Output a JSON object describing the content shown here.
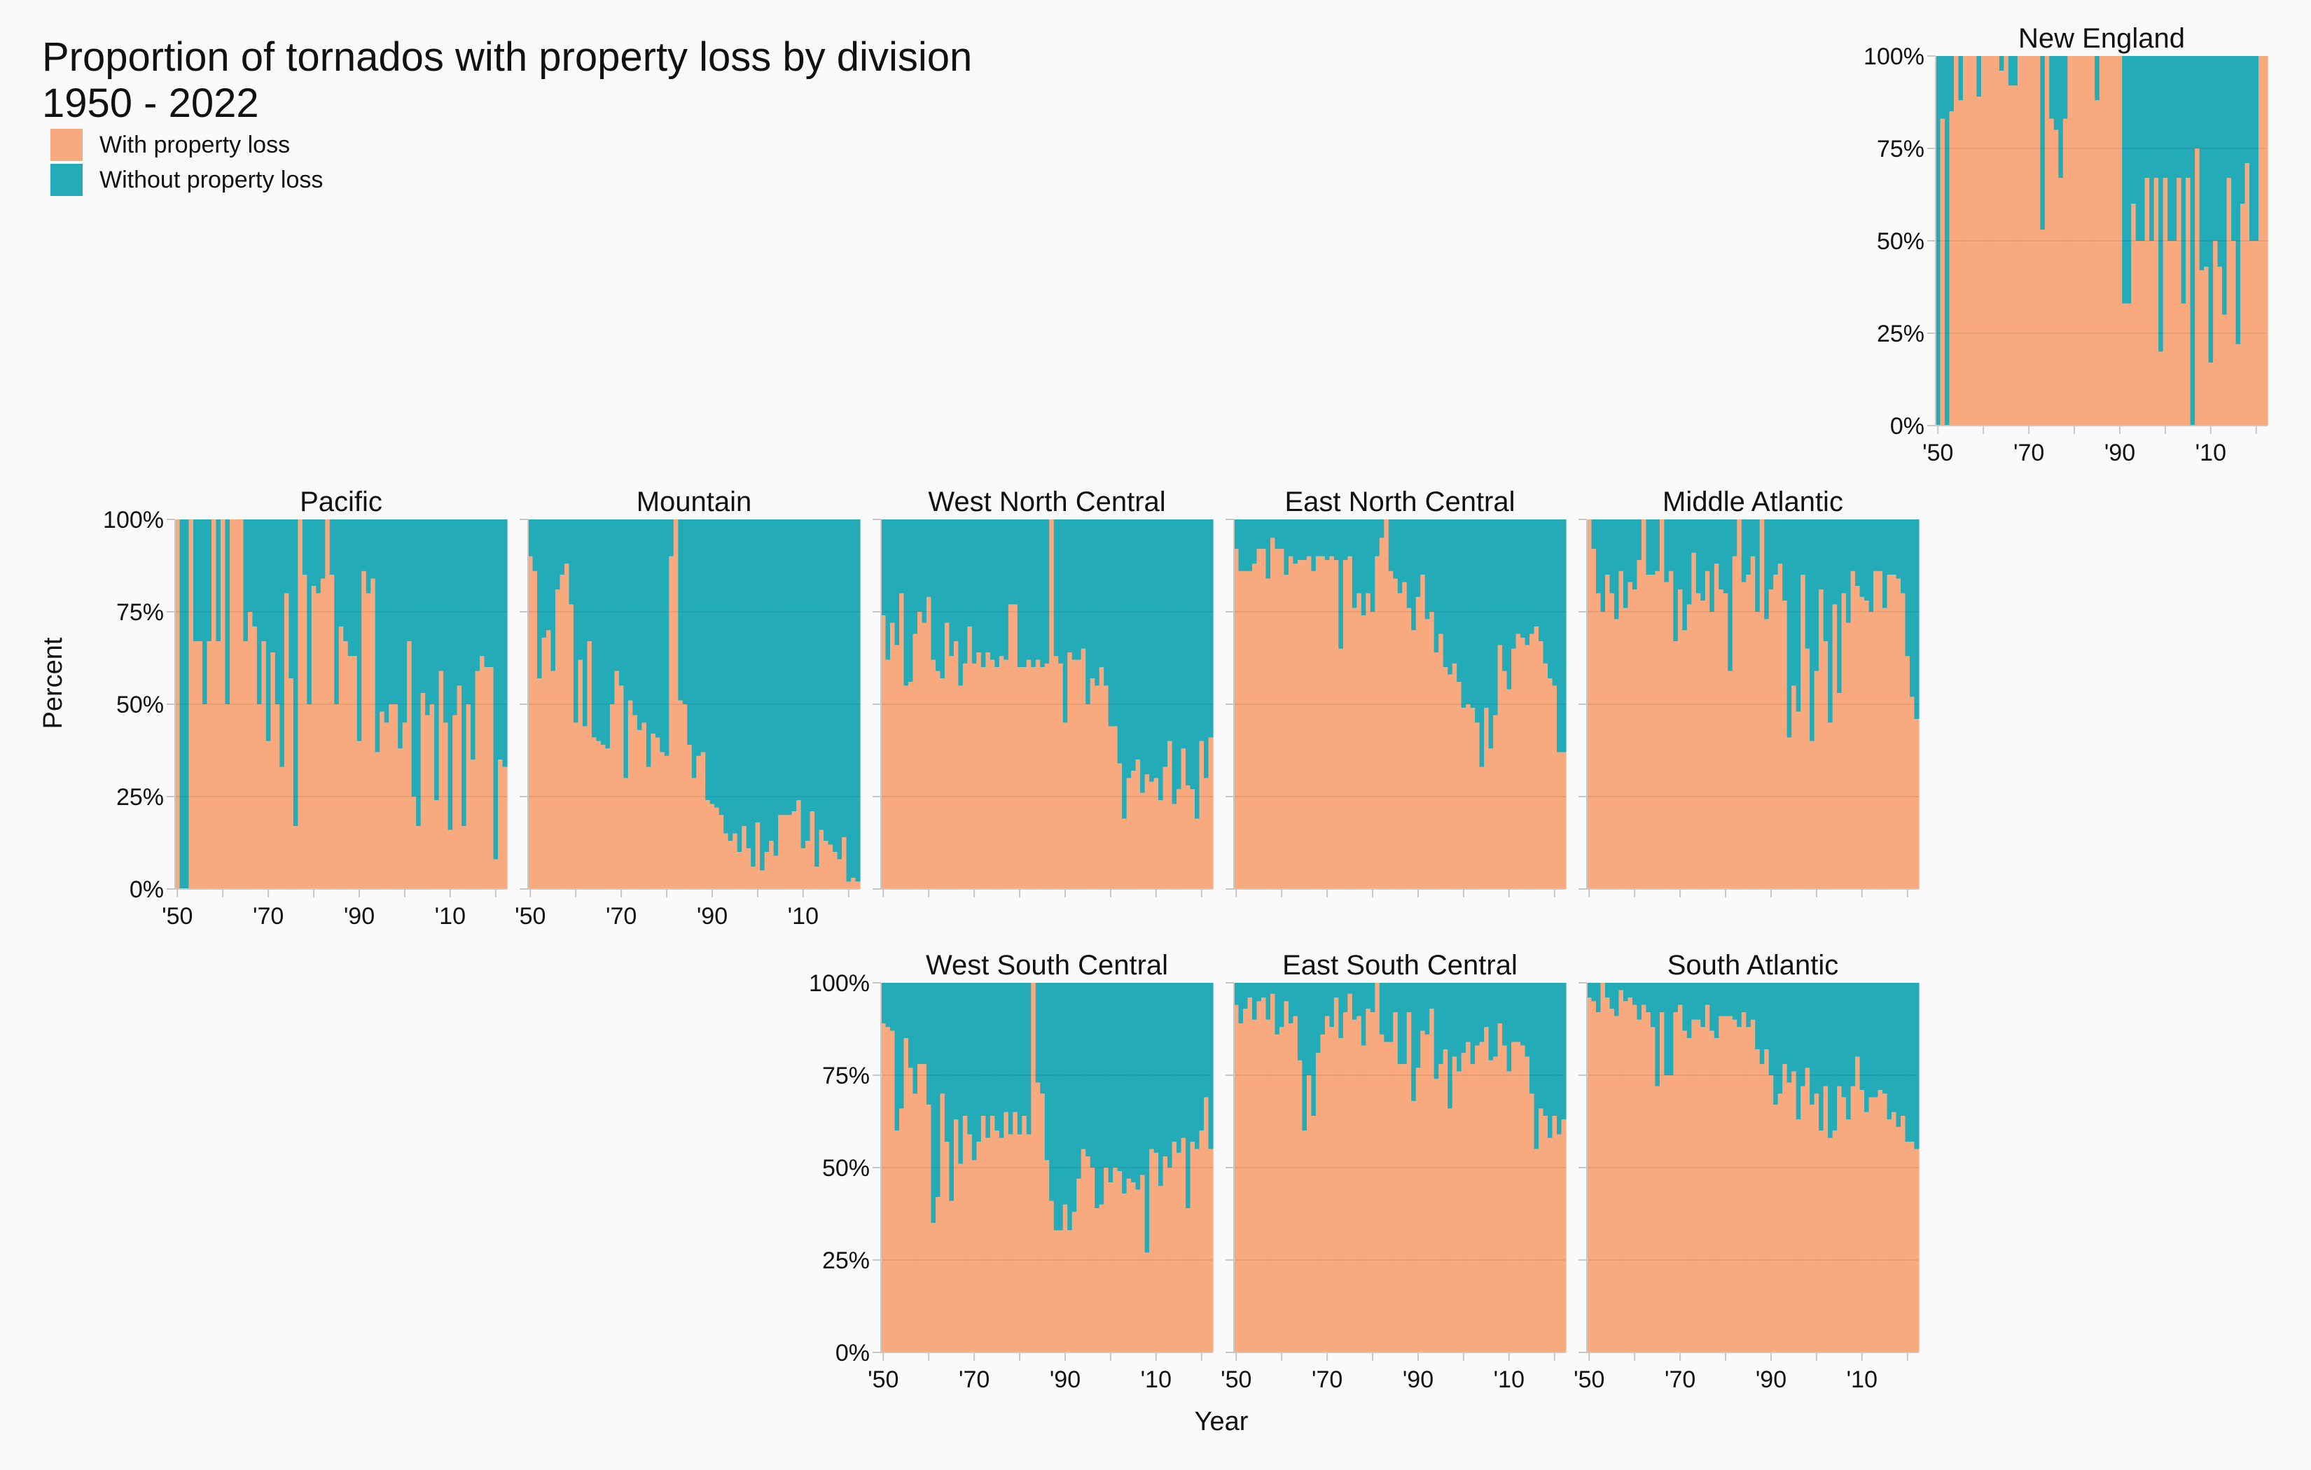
{
  "chart_data": {
    "type": "bar",
    "stacked": true,
    "title": "Proportion of tornados with property loss by division",
    "subtitle": "1950 - 2022",
    "xlabel": "Year",
    "ylabel": "Percent",
    "ylim": [
      0,
      1
    ],
    "x_range": [
      1950,
      2022
    ],
    "y_ticks": [
      "0%",
      "25%",
      "50%",
      "75%",
      "100%"
    ],
    "x_ticks": [
      {
        "year": 1950,
        "label": "'50"
      },
      {
        "year": 1970,
        "label": "'70"
      },
      {
        "year": 1990,
        "label": "'90"
      },
      {
        "year": 2010,
        "label": "'10"
      }
    ],
    "grid": true,
    "legend_position": "top-left",
    "legend": [
      {
        "label": "With property loss",
        "color": "#f8a97e"
      },
      {
        "label": "Without property loss",
        "color": "#23abb8"
      }
    ],
    "colors": {
      "with": "#f8a97e",
      "without": "#23abb8",
      "grid": "#e2e2e2",
      "axis": "#c8c8c8"
    },
    "panels": [
      {
        "name": "New England",
        "start": 1950,
        "values": [
          0.0,
          0.83,
          0.0,
          0.85,
          1.0,
          0.88,
          1.0,
          1.0,
          1.0,
          0.89,
          1.0,
          1.0,
          1.0,
          1.0,
          0.96,
          1.0,
          0.92,
          0.92,
          1.0,
          1.0,
          1.0,
          1.0,
          1.0,
          0.53,
          1.0,
          0.83,
          0.8,
          0.67,
          0.83,
          1.0,
          1.0,
          1.0,
          1.0,
          1.0,
          1.0,
          0.88,
          1.0,
          1.0,
          1.0,
          1.0,
          1.0,
          0.33,
          0.33,
          0.6,
          0.5,
          0.5,
          0.67,
          0.5,
          0.67,
          0.2,
          0.67,
          0.5,
          0.5,
          0.67,
          0.33,
          0.67,
          0.0,
          0.75,
          0.42,
          0.43,
          0.17,
          0.5,
          0.43,
          0.3,
          0.67,
          0.5,
          0.22,
          0.6,
          0.71,
          0.5,
          0.5,
          1.0,
          1.0
        ]
      },
      {
        "name": "Pacific",
        "start": 1950,
        "values": [
          1.0,
          0.0,
          0.0,
          1.0,
          0.67,
          0.67,
          0.5,
          0.67,
          1.0,
          0.67,
          1.0,
          0.5,
          1.0,
          1.0,
          1.0,
          0.67,
          0.75,
          0.71,
          0.5,
          0.67,
          0.4,
          0.64,
          0.5,
          0.33,
          0.8,
          0.57,
          0.17,
          1.0,
          0.85,
          0.5,
          0.82,
          0.8,
          0.84,
          1.0,
          0.85,
          0.5,
          0.71,
          0.67,
          0.63,
          0.63,
          0.4,
          0.86,
          0.8,
          0.84,
          0.37,
          0.48,
          0.45,
          0.5,
          0.5,
          0.38,
          0.45,
          0.67,
          0.25,
          0.17,
          0.53,
          0.47,
          0.5,
          0.24,
          0.59,
          0.45,
          0.16,
          0.47,
          0.55,
          0.17,
          0.5,
          0.35,
          0.59,
          0.63,
          0.6,
          0.6,
          0.08,
          0.35,
          0.33
        ]
      },
      {
        "name": "Mountain",
        "start": 1950,
        "values": [
          0.9,
          0.86,
          0.57,
          0.68,
          0.7,
          0.59,
          0.81,
          0.85,
          0.88,
          0.77,
          0.45,
          0.62,
          0.44,
          0.67,
          0.41,
          0.4,
          0.39,
          0.38,
          0.5,
          0.59,
          0.55,
          0.3,
          0.51,
          0.47,
          0.43,
          0.45,
          0.33,
          0.42,
          0.41,
          0.37,
          0.36,
          0.9,
          1.0,
          0.51,
          0.5,
          0.39,
          0.3,
          0.36,
          0.37,
          0.24,
          0.23,
          0.22,
          0.2,
          0.15,
          0.13,
          0.15,
          0.1,
          0.17,
          0.11,
          0.06,
          0.18,
          0.05,
          0.1,
          0.13,
          0.09,
          0.2,
          0.2,
          0.2,
          0.21,
          0.24,
          0.11,
          0.13,
          0.21,
          0.06,
          0.16,
          0.13,
          0.12,
          0.1,
          0.08,
          0.14,
          0.02,
          0.03,
          0.02
        ]
      },
      {
        "name": "West North Central",
        "start": 1950,
        "values": [
          0.74,
          0.62,
          0.72,
          0.66,
          0.8,
          0.55,
          0.56,
          0.69,
          0.75,
          0.72,
          0.79,
          0.62,
          0.59,
          0.57,
          0.72,
          0.63,
          0.67,
          0.55,
          0.61,
          0.71,
          0.61,
          0.64,
          0.6,
          0.64,
          0.62,
          0.6,
          0.63,
          0.62,
          0.77,
          0.77,
          0.6,
          0.6,
          0.62,
          0.6,
          0.62,
          0.6,
          0.61,
          1.0,
          0.63,
          0.61,
          0.45,
          0.64,
          0.62,
          0.62,
          0.65,
          0.5,
          0.57,
          0.55,
          0.6,
          0.55,
          0.44,
          0.44,
          0.34,
          0.19,
          0.3,
          0.32,
          0.35,
          0.26,
          0.31,
          0.29,
          0.3,
          0.24,
          0.33,
          0.4,
          0.23,
          0.27,
          0.38,
          0.28,
          0.27,
          0.19,
          0.4,
          0.3,
          0.41
        ]
      },
      {
        "name": "East North Central",
        "start": 1950,
        "values": [
          0.92,
          0.86,
          0.86,
          0.86,
          0.88,
          0.92,
          0.92,
          0.84,
          0.95,
          0.92,
          0.92,
          0.85,
          0.9,
          0.88,
          0.89,
          0.89,
          0.9,
          0.86,
          0.9,
          0.9,
          0.89,
          0.9,
          0.89,
          0.65,
          0.89,
          0.9,
          0.76,
          0.8,
          0.74,
          0.8,
          0.75,
          0.9,
          0.95,
          1.0,
          0.86,
          0.84,
          0.8,
          0.83,
          0.76,
          0.7,
          0.79,
          0.85,
          0.73,
          0.75,
          0.64,
          0.69,
          0.6,
          0.58,
          0.61,
          0.56,
          0.49,
          0.5,
          0.49,
          0.45,
          0.33,
          0.49,
          0.38,
          0.47,
          0.66,
          0.59,
          0.54,
          0.65,
          0.69,
          0.68,
          0.66,
          0.69,
          0.71,
          0.67,
          0.61,
          0.57,
          0.55,
          0.37,
          0.37
        ]
      },
      {
        "name": "Middle Atlantic",
        "start": 1950,
        "values": [
          1.0,
          0.92,
          0.8,
          0.75,
          0.85,
          0.8,
          0.73,
          0.86,
          0.76,
          0.83,
          0.81,
          0.89,
          1.0,
          0.85,
          0.85,
          0.86,
          1.0,
          0.83,
          0.86,
          0.67,
          0.81,
          0.7,
          0.77,
          0.91,
          0.8,
          0.78,
          0.86,
          0.75,
          0.88,
          0.81,
          0.8,
          0.59,
          0.9,
          1.0,
          0.83,
          0.85,
          0.9,
          0.75,
          1.0,
          0.73,
          0.81,
          0.85,
          0.88,
          0.78,
          0.41,
          0.55,
          0.48,
          0.85,
          0.65,
          0.4,
          0.59,
          0.81,
          0.67,
          0.45,
          0.77,
          0.53,
          0.8,
          0.72,
          0.86,
          0.82,
          0.79,
          0.78,
          0.75,
          0.86,
          0.86,
          0.76,
          0.85,
          0.85,
          0.84,
          0.8,
          0.63,
          0.52,
          0.46
        ]
      },
      {
        "name": "West South Central",
        "start": 1950,
        "values": [
          0.89,
          0.88,
          0.87,
          0.6,
          0.66,
          0.85,
          0.77,
          0.7,
          0.78,
          0.78,
          0.67,
          0.35,
          0.42,
          0.7,
          0.57,
          0.41,
          0.63,
          0.51,
          0.64,
          0.59,
          0.52,
          0.57,
          0.64,
          0.58,
          0.64,
          0.6,
          0.58,
          0.65,
          0.59,
          0.65,
          0.59,
          0.64,
          0.59,
          1.0,
          0.73,
          0.7,
          0.52,
          0.41,
          0.33,
          0.33,
          0.4,
          0.33,
          0.38,
          0.47,
          0.55,
          0.53,
          0.5,
          0.39,
          0.4,
          0.5,
          0.46,
          0.5,
          0.49,
          0.43,
          0.47,
          0.46,
          0.44,
          0.48,
          0.27,
          0.55,
          0.54,
          0.45,
          0.53,
          0.5,
          0.57,
          0.54,
          0.58,
          0.39,
          0.57,
          0.55,
          0.6,
          0.69,
          0.55
        ]
      },
      {
        "name": "East South Central",
        "start": 1950,
        "values": [
          0.94,
          0.89,
          0.93,
          0.96,
          0.9,
          0.95,
          0.96,
          0.9,
          0.97,
          0.86,
          0.88,
          0.95,
          0.89,
          0.91,
          0.79,
          0.6,
          0.75,
          0.64,
          0.81,
          0.86,
          0.91,
          0.88,
          0.96,
          0.85,
          0.92,
          0.97,
          0.9,
          0.91,
          0.83,
          0.93,
          0.92,
          1.0,
          0.86,
          0.84,
          0.84,
          0.92,
          0.78,
          0.78,
          0.92,
          0.68,
          0.77,
          0.87,
          0.86,
          0.93,
          0.74,
          0.78,
          0.82,
          0.66,
          0.8,
          0.76,
          0.81,
          0.84,
          0.78,
          0.83,
          0.84,
          0.88,
          0.79,
          0.8,
          0.89,
          0.83,
          0.76,
          0.84,
          0.84,
          0.83,
          0.8,
          0.7,
          0.55,
          0.66,
          0.64,
          0.58,
          0.64,
          0.59,
          0.63
        ]
      },
      {
        "name": "South Atlantic",
        "start": 1950,
        "values": [
          0.96,
          0.95,
          0.92,
          1.0,
          0.96,
          0.93,
          0.91,
          0.98,
          0.95,
          0.96,
          0.94,
          0.9,
          0.94,
          0.92,
          0.88,
          0.72,
          0.92,
          0.75,
          0.75,
          0.92,
          0.94,
          0.87,
          0.85,
          0.9,
          0.9,
          0.88,
          0.94,
          0.87,
          0.85,
          0.91,
          0.91,
          0.91,
          0.9,
          0.88,
          0.92,
          0.88,
          0.9,
          0.82,
          0.78,
          0.82,
          0.75,
          0.67,
          0.7,
          0.78,
          0.73,
          0.76,
          0.63,
          0.72,
          0.77,
          0.67,
          0.7,
          0.6,
          0.72,
          0.58,
          0.6,
          0.72,
          0.69,
          0.63,
          0.72,
          0.8,
          0.71,
          0.65,
          0.69,
          0.69,
          0.71,
          0.7,
          0.63,
          0.65,
          0.61,
          0.64,
          0.57,
          0.57,
          0.55
        ]
      }
    ]
  }
}
